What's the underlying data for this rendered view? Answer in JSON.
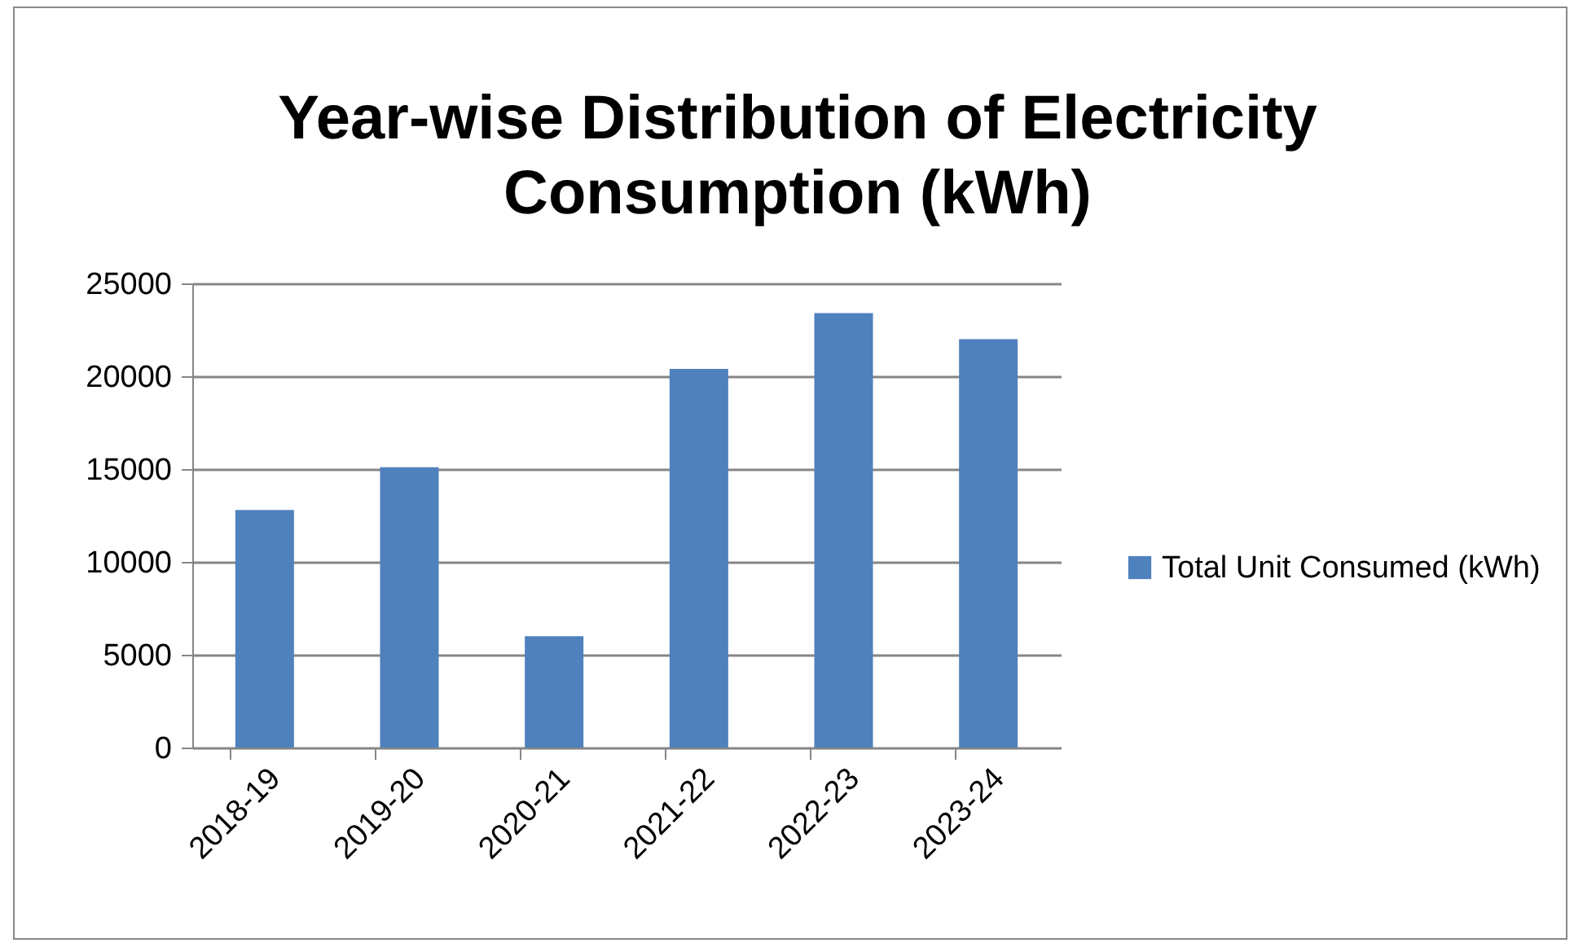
{
  "chart_data": {
    "type": "bar",
    "title": "Year-wise Distribution of Electricity Consumption (kWh)",
    "categories": [
      "2018-19",
      "2019-20",
      "2020-21",
      "2021-22",
      "2022-23",
      "2023-24"
    ],
    "series": [
      {
        "name": "Total Unit Consumed (kWh)",
        "color": "#4f81bd",
        "values": [
          12800,
          15100,
          6000,
          20400,
          23400,
          22000
        ]
      }
    ],
    "ylim": [
      0,
      25000
    ],
    "yticks": [
      0,
      5000,
      10000,
      15000,
      20000,
      25000
    ],
    "grid": "y",
    "legend": "right"
  }
}
